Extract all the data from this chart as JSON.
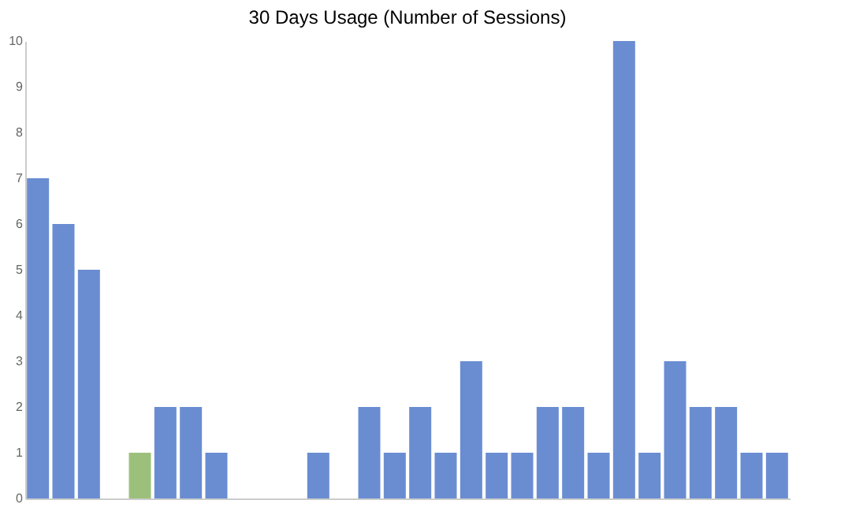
{
  "chart_data": {
    "type": "bar",
    "title": "30 Days Usage (Number of Sessions)",
    "legend": false,
    "grid": false,
    "categories": [
      null,
      null,
      null,
      null,
      null,
      null,
      null,
      null,
      null,
      null,
      null,
      null,
      null,
      null,
      null,
      null,
      null,
      null,
      null,
      null,
      null,
      null,
      null,
      null,
      null,
      null,
      null,
      null,
      null,
      null
    ],
    "series": [
      {
        "color": "#9cc07c",
        "values": [
          0,
          0,
          0,
          0,
          1,
          0,
          0,
          0,
          0,
          0,
          0,
          0,
          0,
          0,
          0,
          0,
          0,
          0,
          0,
          0,
          0,
          0,
          0,
          0,
          0,
          0,
          0,
          0,
          0,
          0
        ]
      },
      {
        "color": "#6a8dd2",
        "values": [
          7,
          6,
          5,
          0,
          0,
          2,
          2,
          1,
          0,
          0,
          0,
          1,
          0,
          2,
          1,
          2,
          1,
          3,
          1,
          1,
          2,
          2,
          1,
          10,
          1,
          3,
          2,
          2,
          1,
          1
        ]
      }
    ],
    "ylim": [
      0,
      10
    ],
    "yticks": [
      0,
      1,
      2,
      3,
      4,
      5,
      6,
      7,
      8,
      9,
      10
    ]
  }
}
